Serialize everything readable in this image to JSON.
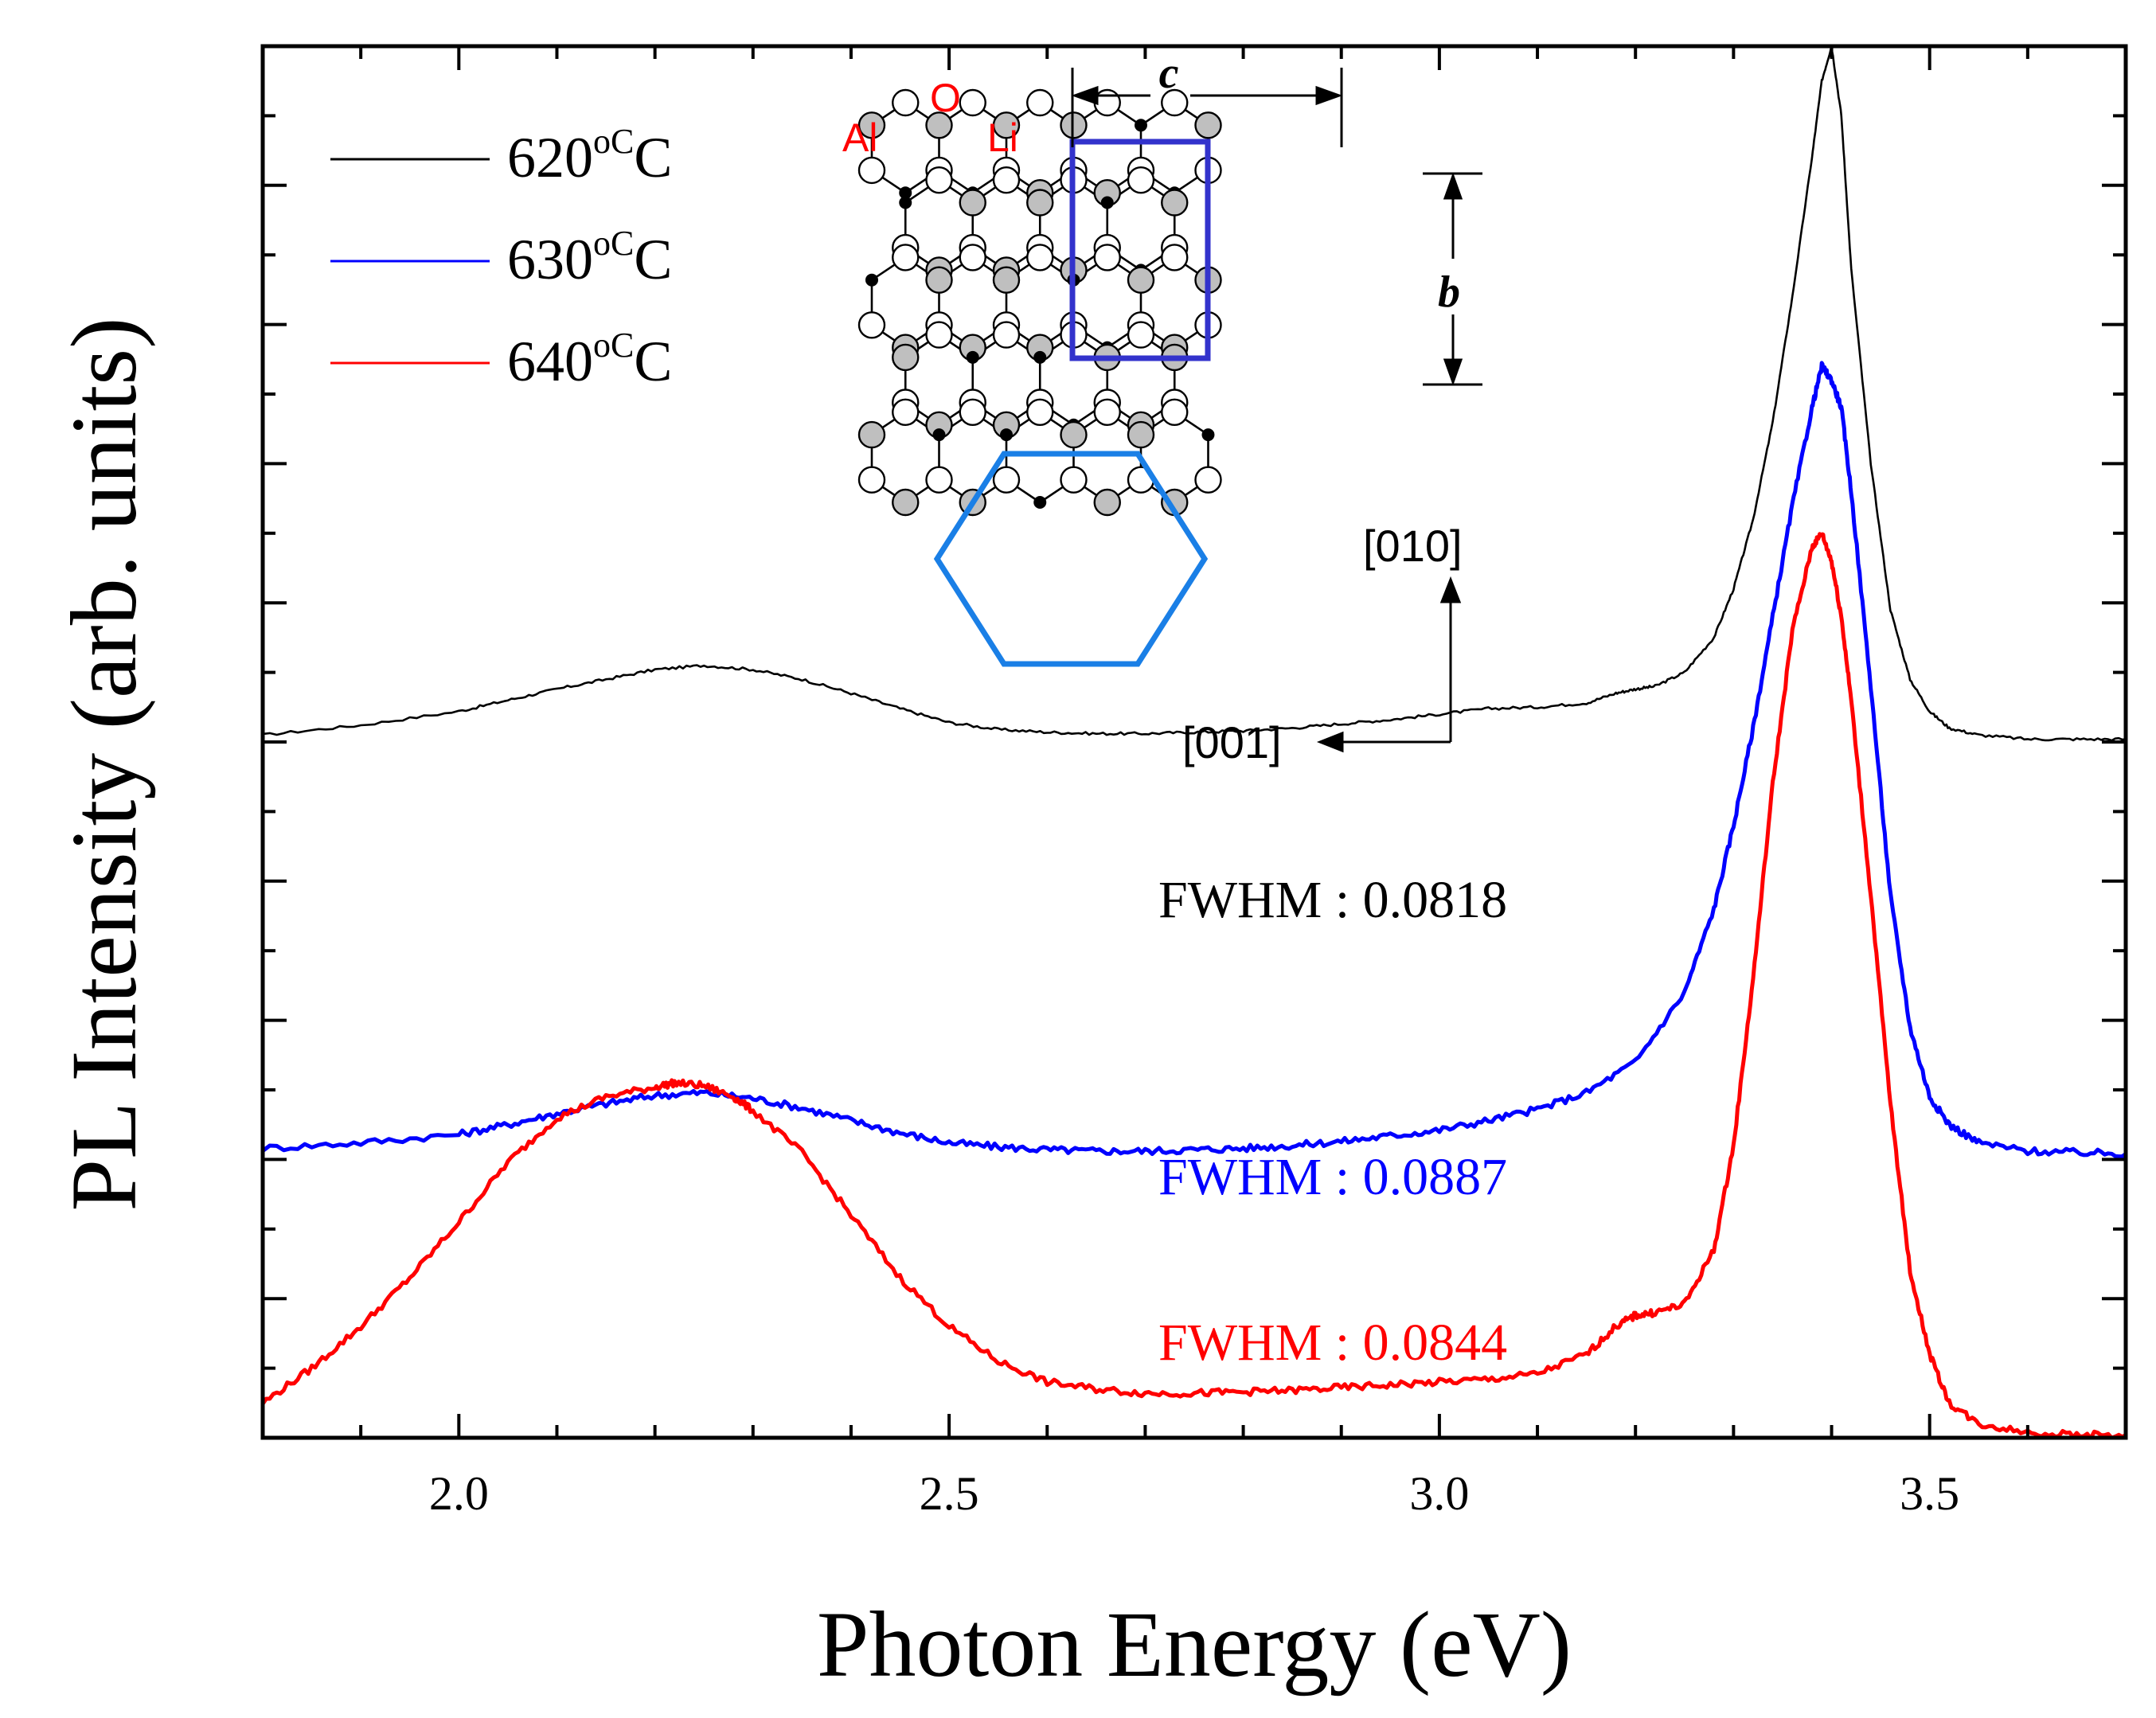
{
  "chart_data": {
    "type": "line",
    "title": "",
    "xlabel": "Photon Energy (eV)",
    "ylabel": "PL Intensity (arb. units)",
    "xlim": [
      1.8,
      3.7
    ],
    "ylim": [
      0,
      10
    ],
    "x_ticks": [
      2.0,
      2.5,
      3.0,
      3.5
    ],
    "x_tick_labels": [
      "2.0",
      "2.5",
      "3.0",
      "3.5"
    ],
    "y_tick_labels_shown": false,
    "legend_position": "top-left",
    "series": [
      {
        "name": "620",
        "unit": "oC",
        "color": "#000000",
        "stroke": "thin",
        "x": [
          1.8,
          1.9,
          2.0,
          2.05,
          2.1,
          2.15,
          2.2,
          2.25,
          2.3,
          2.35,
          2.4,
          2.45,
          2.5,
          2.55,
          2.6,
          2.65,
          2.7,
          2.75,
          2.8,
          2.85,
          2.9,
          2.95,
          3.0,
          3.05,
          3.1,
          3.15,
          3.18,
          3.2,
          3.22,
          3.25,
          3.28,
          3.3,
          3.32,
          3.34,
          3.36,
          3.38,
          3.39,
          3.4,
          3.41,
          3.42,
          3.44,
          3.46,
          3.48,
          3.5,
          3.52,
          3.55,
          3.6,
          3.65,
          3.7
        ],
        "values": [
          5.05,
          5.12,
          5.22,
          5.3,
          5.38,
          5.45,
          5.52,
          5.55,
          5.52,
          5.45,
          5.35,
          5.24,
          5.14,
          5.09,
          5.07,
          5.06,
          5.06,
          5.07,
          5.08,
          5.1,
          5.13,
          5.16,
          5.2,
          5.24,
          5.25,
          5.28,
          5.35,
          5.38,
          5.4,
          5.5,
          5.75,
          6.1,
          6.6,
          7.3,
          8.2,
          9.2,
          9.75,
          10.0,
          9.5,
          8.4,
          7.0,
          5.95,
          5.45,
          5.22,
          5.1,
          5.05,
          5.02,
          5.02,
          5.02
        ]
      },
      {
        "name": "630",
        "unit": "oC",
        "color": "#0000ff",
        "stroke": "thick",
        "x": [
          1.8,
          1.9,
          2.0,
          2.05,
          2.1,
          2.15,
          2.2,
          2.25,
          2.3,
          2.35,
          2.4,
          2.45,
          2.5,
          2.55,
          2.6,
          2.65,
          2.7,
          2.75,
          2.8,
          2.85,
          2.9,
          2.95,
          3.0,
          3.05,
          3.1,
          3.15,
          3.2,
          3.25,
          3.28,
          3.3,
          3.32,
          3.34,
          3.36,
          3.38,
          3.39,
          3.4,
          3.41,
          3.42,
          3.44,
          3.46,
          3.48,
          3.5,
          3.52,
          3.55,
          3.6,
          3.65,
          3.7
        ],
        "values": [
          2.08,
          2.12,
          2.18,
          2.25,
          2.33,
          2.4,
          2.46,
          2.48,
          2.44,
          2.37,
          2.28,
          2.19,
          2.12,
          2.09,
          2.07,
          2.06,
          2.06,
          2.07,
          2.08,
          2.1,
          2.13,
          2.17,
          2.21,
          2.28,
          2.36,
          2.48,
          2.7,
          3.2,
          3.8,
          4.4,
          5.1,
          5.9,
          6.7,
          7.4,
          7.7,
          7.6,
          7.4,
          6.8,
          5.4,
          3.9,
          2.95,
          2.45,
          2.25,
          2.12,
          2.06,
          2.05,
          2.04
        ]
      },
      {
        "name": "640",
        "unit": "oC",
        "color": "#ff0000",
        "stroke": "thick",
        "x": [
          1.8,
          1.85,
          1.9,
          1.95,
          2.0,
          2.05,
          2.1,
          2.15,
          2.2,
          2.22,
          2.25,
          2.28,
          2.3,
          2.35,
          2.4,
          2.45,
          2.5,
          2.55,
          2.6,
          2.65,
          2.7,
          2.75,
          2.8,
          2.85,
          2.9,
          2.95,
          3.0,
          3.05,
          3.1,
          3.15,
          3.18,
          3.2,
          3.22,
          3.25,
          3.28,
          3.3,
          3.32,
          3.34,
          3.36,
          3.38,
          3.39,
          3.4,
          3.41,
          3.42,
          3.44,
          3.46,
          3.48,
          3.5,
          3.52,
          3.55,
          3.6,
          3.65,
          3.7
        ],
        "values": [
          0.25,
          0.5,
          0.8,
          1.15,
          1.55,
          1.98,
          2.3,
          2.45,
          2.52,
          2.55,
          2.53,
          2.45,
          2.35,
          2.05,
          1.6,
          1.15,
          0.8,
          0.55,
          0.4,
          0.35,
          0.32,
          0.32,
          0.33,
          0.34,
          0.36,
          0.38,
          0.4,
          0.42,
          0.46,
          0.6,
          0.8,
          0.88,
          0.9,
          0.96,
          1.35,
          2.1,
          3.3,
          4.7,
          5.8,
          6.4,
          6.5,
          6.3,
          5.9,
          5.3,
          3.9,
          2.4,
          1.2,
          0.6,
          0.25,
          0.1,
          0.04,
          0.02,
          0.02
        ]
      }
    ],
    "annotations": [
      {
        "text": "FWHM : 0.0818",
        "color": "#000000"
      },
      {
        "text": "FWHM : 0.0887",
        "color": "#0000ff"
      },
      {
        "text": "FWHM : 0.0844",
        "color": "#ff0000"
      }
    ],
    "inset": {
      "description_labels": {
        "al": "Al",
        "o": "O",
        "li": "Li",
        "c": "c",
        "b": "b",
        "dir_010": "[010]",
        "dir_001": "[001]"
      },
      "colors": {
        "element_labels": "#ff0000",
        "unit_cell_box": "#3333cc",
        "hexagon_outline": "#1a7fe6",
        "al_atom": "#bfbfbf",
        "o_atom": "#ffffff",
        "li_atom": "#000000"
      }
    }
  }
}
